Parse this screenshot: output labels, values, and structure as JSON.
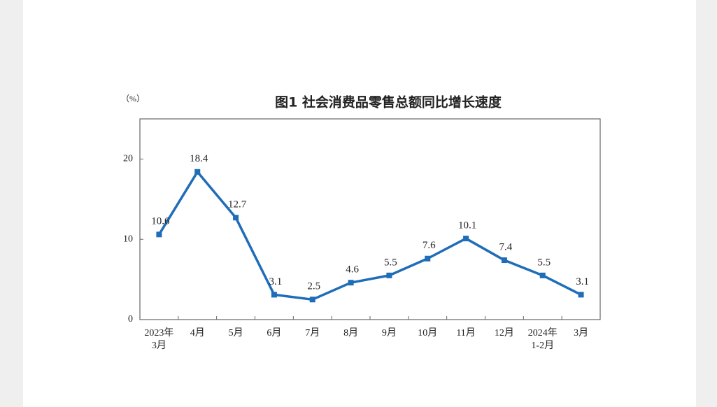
{
  "chart_data": {
    "type": "line",
    "title": "图1  社会消费品零售总额同比增长速度",
    "y_unit": "（%）",
    "categories": [
      [
        "2023年",
        "3月"
      ],
      "4月",
      "5月",
      "6月",
      "7月",
      "8月",
      "9月",
      "10月",
      "11月",
      "12月",
      [
        "2024年",
        "1-2月"
      ],
      "3月"
    ],
    "values": [
      10.6,
      18.4,
      12.7,
      3.1,
      2.5,
      4.6,
      5.5,
      7.6,
      10.1,
      7.4,
      5.5,
      3.1
    ],
    "color": "#1f6db8",
    "ylim": [
      0,
      25
    ],
    "yticks": [
      0,
      10,
      20
    ]
  }
}
